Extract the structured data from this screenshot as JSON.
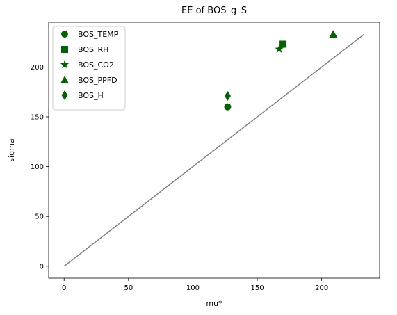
{
  "chart_data": {
    "type": "scatter",
    "title": "EE of BOS_g_S",
    "xlabel": "mu*",
    "ylabel": "sigma",
    "xlim": [
      -12,
      245
    ],
    "ylim": [
      -12,
      245
    ],
    "xticks": [
      0,
      50,
      100,
      150,
      200
    ],
    "yticks": [
      0,
      50,
      100,
      150,
      200
    ],
    "grid": false,
    "legend_position": "upper-left",
    "marker_color": "#006400",
    "reference_line": {
      "from": [
        0,
        0
      ],
      "to": [
        233,
        233
      ],
      "color": "#808080"
    },
    "series": [
      {
        "name": "BOS_TEMP",
        "marker": "circle",
        "points": [
          [
            127,
            160
          ]
        ]
      },
      {
        "name": "BOS_RH",
        "marker": "square",
        "points": [
          [
            170,
            223
          ]
        ]
      },
      {
        "name": "BOS_CO2",
        "marker": "star",
        "points": [
          [
            167,
            218
          ]
        ]
      },
      {
        "name": "BOS_PPFD",
        "marker": "triangle",
        "points": [
          [
            209,
            233
          ]
        ]
      },
      {
        "name": "BOS_H",
        "marker": "diamond",
        "points": [
          [
            127,
            171
          ]
        ]
      }
    ]
  }
}
